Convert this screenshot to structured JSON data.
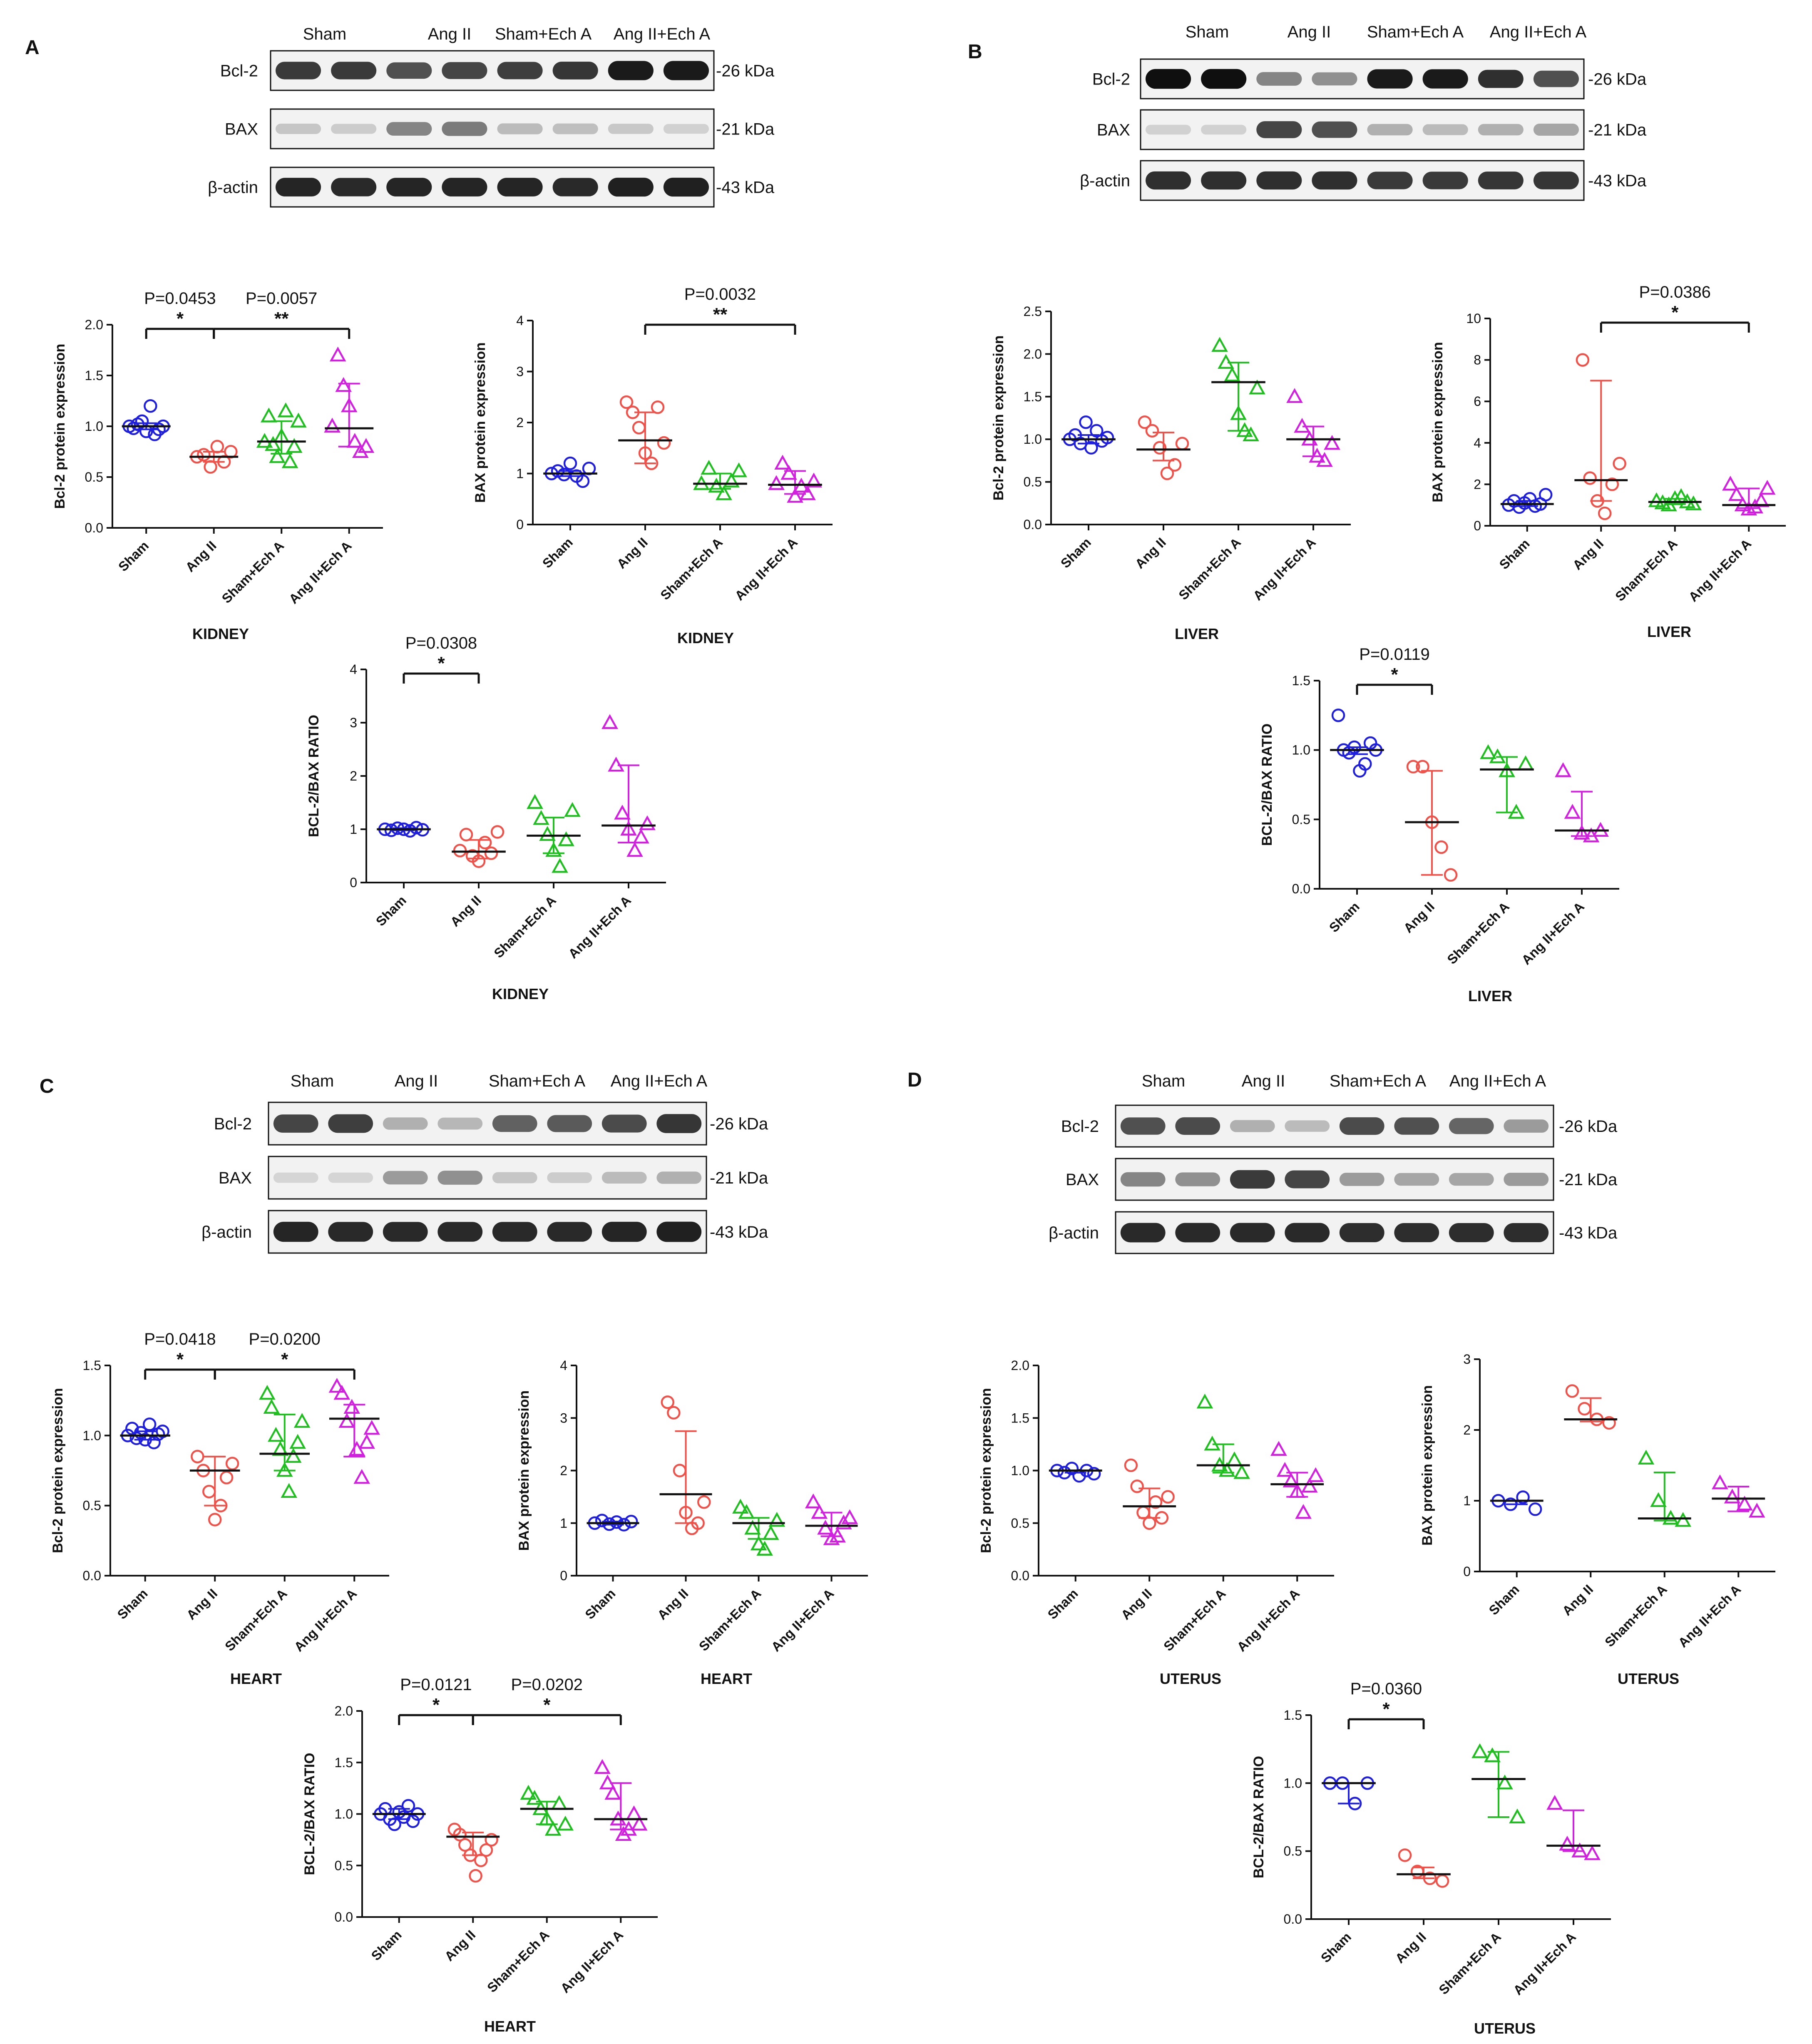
{
  "groups": [
    "Sham",
    "Ang II",
    "Sham+Ech A",
    "Ang II+Ech A"
  ],
  "group_colors": [
    "#1f1fe0",
    "#f0524a",
    "#1fbf1f",
    "#d21fe0"
  ],
  "group_markers": [
    "circle",
    "circle",
    "triangle",
    "triangle"
  ],
  "panels": [
    {
      "letter": "A",
      "blot": {
        "header": [
          "Sham",
          "Ang II",
          "Sham+Ech A",
          "Ang II+Ech A"
        ],
        "rows": [
          {
            "label": "Bcl-2",
            "size": "-26 kDa",
            "intensity": [
              0.8,
              0.8,
              0.7,
              0.75,
              0.78,
              0.82,
              0.95,
              0.95
            ]
          },
          {
            "label": "BAX",
            "size": "-21 kDa",
            "intensity": [
              0.15,
              0.12,
              0.45,
              0.5,
              0.2,
              0.18,
              0.14,
              0.1
            ]
          },
          {
            "label": "β-actin",
            "size": "-43 kDa",
            "intensity": [
              0.9,
              0.88,
              0.9,
              0.9,
              0.9,
              0.88,
              0.92,
              0.92
            ]
          }
        ]
      }
    },
    {
      "letter": "B",
      "blot": {
        "header": [
          "Sham",
          "Ang II",
          "Sham+Ech A",
          "Ang II+Ech A"
        ],
        "rows": [
          {
            "label": "Bcl-2",
            "size": "-26 kDa",
            "intensity": [
              1.0,
              1.0,
              0.45,
              0.4,
              0.95,
              0.95,
              0.85,
              0.7
            ]
          },
          {
            "label": "BAX",
            "size": "-21 kDa",
            "intensity": [
              0.1,
              0.1,
              0.75,
              0.7,
              0.25,
              0.2,
              0.25,
              0.3
            ]
          },
          {
            "label": "β-actin",
            "size": "-43 kDa",
            "intensity": [
              0.85,
              0.85,
              0.85,
              0.85,
              0.8,
              0.8,
              0.82,
              0.82
            ]
          }
        ]
      }
    },
    {
      "letter": "C",
      "blot": {
        "header": [
          "Sham",
          "Ang II",
          "Sham+Ech A",
          "Ang II+Ech A"
        ],
        "rows": [
          {
            "label": "Bcl-2",
            "size": "-26 kDa",
            "intensity": [
              0.75,
              0.78,
              0.25,
              0.22,
              0.62,
              0.65,
              0.72,
              0.82
            ]
          },
          {
            "label": "BAX",
            "size": "-21 kDa",
            "intensity": [
              0.08,
              0.08,
              0.35,
              0.4,
              0.15,
              0.12,
              0.2,
              0.25
            ]
          },
          {
            "label": "β-actin",
            "size": "-43 kDa",
            "intensity": [
              0.9,
              0.88,
              0.88,
              0.88,
              0.88,
              0.88,
              0.9,
              0.92
            ]
          }
        ]
      }
    },
    {
      "letter": "D",
      "blot": {
        "header": [
          "Sham",
          "Ang II",
          "Sham+Ech A",
          "Ang II+Ech A"
        ],
        "rows": [
          {
            "label": "Bcl-2",
            "size": "-26 kDa",
            "intensity": [
              0.7,
              0.72,
              0.25,
              0.2,
              0.72,
              0.7,
              0.6,
              0.35
            ]
          },
          {
            "label": "BAX",
            "size": "-21 kDa",
            "intensity": [
              0.45,
              0.4,
              0.8,
              0.75,
              0.35,
              0.3,
              0.3,
              0.35
            ]
          },
          {
            "label": "β-actin",
            "size": "-43 kDa",
            "intensity": [
              0.88,
              0.88,
              0.88,
              0.88,
              0.86,
              0.86,
              0.86,
              0.86
            ]
          }
        ]
      }
    }
  ],
  "chart_data": [
    {
      "id": "A1",
      "type": "scatter",
      "tissue": "KIDNEY",
      "ylabel": "Bcl-2 protein expression",
      "ylim": [
        0,
        2.0
      ],
      "yticks": [
        0.0,
        0.5,
        1.0,
        1.5,
        2.0
      ],
      "tick_decimals": 1,
      "points": [
        [
          1.0,
          0.98,
          1.02,
          1.05,
          0.95,
          1.2,
          0.92,
          0.97,
          1.0
        ],
        [
          0.7,
          0.72,
          0.6,
          0.8,
          0.65,
          0.75
        ],
        [
          0.85,
          1.1,
          0.82,
          0.7,
          0.9,
          1.15,
          0.65,
          0.8,
          1.05
        ],
        [
          1.0,
          1.7,
          1.4,
          1.2,
          0.85,
          0.75,
          0.8
        ]
      ],
      "median": [
        1.0,
        0.7,
        0.85,
        0.98
      ],
      "error_low": [
        0.97,
        0.65,
        0.73,
        0.8
      ],
      "error_high": [
        1.03,
        0.75,
        1.05,
        1.42
      ],
      "comparisons": [
        {
          "from": 0,
          "to": 1,
          "p": "P=0.0453",
          "stars": "*"
        },
        {
          "from": 1,
          "to": 3,
          "p": "P=0.0057",
          "stars": "**"
        }
      ]
    },
    {
      "id": "A2",
      "type": "scatter",
      "tissue": "KIDNEY",
      "ylabel": "BAX protein expression",
      "ylim": [
        0,
        4
      ],
      "yticks": [
        0,
        1,
        2,
        3,
        4
      ],
      "tick_decimals": 0,
      "points": [
        [
          1.0,
          1.05,
          0.98,
          1.2,
          0.95,
          0.85,
          1.1
        ],
        [
          2.4,
          2.2,
          1.9,
          1.4,
          1.2,
          2.3,
          1.6
        ],
        [
          0.8,
          1.1,
          0.75,
          0.6,
          0.85,
          1.05
        ],
        [
          0.8,
          1.2,
          1.0,
          0.55,
          0.75,
          0.6,
          0.85
        ]
      ],
      "median": [
        1.0,
        1.65,
        0.8,
        0.78
      ],
      "error_low": [
        0.95,
        1.2,
        0.7,
        0.6
      ],
      "error_high": [
        1.05,
        2.2,
        1.0,
        1.05
      ],
      "comparisons": [
        {
          "from": 1,
          "to": 3,
          "p": "P=0.0032",
          "stars": "**"
        }
      ]
    },
    {
      "id": "A3",
      "type": "scatter",
      "tissue": "KIDNEY",
      "ylabel": "BCL-2/BAX RATIO",
      "ylim": [
        0,
        4
      ],
      "yticks": [
        0,
        1,
        2,
        3,
        4
      ],
      "tick_decimals": 0,
      "points": [
        [
          1.0,
          0.98,
          1.02,
          1.0,
          0.97,
          1.03,
          0.99
        ],
        [
          0.6,
          0.9,
          0.5,
          0.4,
          0.75,
          0.55,
          0.95
        ],
        [
          1.5,
          1.2,
          0.9,
          0.6,
          0.3,
          0.8,
          1.35
        ],
        [
          3.0,
          2.2,
          1.3,
          1.0,
          0.6,
          0.85,
          1.1
        ]
      ],
      "median": [
        1.0,
        0.58,
        0.88,
        1.07
      ],
      "error_low": [
        0.98,
        0.45,
        0.55,
        0.75
      ],
      "error_high": [
        1.02,
        0.8,
        1.22,
        2.2
      ],
      "comparisons": [
        {
          "from": 0,
          "to": 1,
          "p": "P=0.0308",
          "stars": "*"
        }
      ]
    },
    {
      "id": "B1",
      "type": "scatter",
      "tissue": "LIVER",
      "ylabel": "Bcl-2 protein expression",
      "ylim": [
        0,
        2.5
      ],
      "yticks": [
        0.0,
        0.5,
        1.0,
        1.5,
        2.0,
        2.5
      ],
      "tick_decimals": 1,
      "points": [
        [
          1.0,
          1.05,
          0.95,
          1.2,
          0.9,
          1.1,
          0.98,
          1.02
        ],
        [
          1.2,
          1.1,
          0.9,
          0.6,
          0.7,
          0.95
        ],
        [
          2.1,
          1.9,
          1.75,
          1.3,
          1.1,
          1.05,
          1.6
        ],
        [
          1.5,
          1.15,
          1.0,
          0.8,
          0.75,
          0.95
        ]
      ],
      "median": [
        1.0,
        0.88,
        1.67,
        1.0
      ],
      "error_low": [
        0.95,
        0.75,
        1.1,
        0.8
      ],
      "error_high": [
        1.05,
        1.08,
        1.9,
        1.15
      ],
      "comparisons": []
    },
    {
      "id": "B2",
      "type": "scatter",
      "tissue": "LIVER",
      "ylabel": "BAX protein expression",
      "ylim": [
        0,
        10
      ],
      "yticks": [
        0,
        2,
        4,
        6,
        8,
        10
      ],
      "tick_decimals": 0,
      "points": [
        [
          1.0,
          1.2,
          0.9,
          1.1,
          1.3,
          0.95,
          1.05,
          1.5
        ],
        [
          8.0,
          2.3,
          1.2,
          0.6,
          2.0,
          3.0
        ],
        [
          1.2,
          1.1,
          1.0,
          1.3,
          1.4,
          1.15,
          1.05
        ],
        [
          2.0,
          1.5,
          1.0,
          0.8,
          0.9,
          1.2,
          1.8
        ]
      ],
      "median": [
        1.05,
        2.2,
        1.15,
        1.0
      ],
      "error_low": [
        0.95,
        1.2,
        1.05,
        0.85
      ],
      "error_high": [
        1.2,
        7.0,
        1.3,
        1.8
      ],
      "comparisons": [
        {
          "from": 1,
          "to": 3,
          "p": "P=0.0386",
          "stars": "*"
        }
      ]
    },
    {
      "id": "B3",
      "type": "scatter",
      "tissue": "LIVER",
      "ylabel": "BCL-2/BAX RATIO",
      "ylim": [
        0,
        1.5
      ],
      "yticks": [
        0.0,
        0.5,
        1.0,
        1.5
      ],
      "tick_decimals": 1,
      "points": [
        [
          1.25,
          1.0,
          0.98,
          1.02,
          0.85,
          0.9,
          1.05,
          1.0
        ],
        [
          0.88,
          0.88,
          0.48,
          0.3,
          0.1
        ],
        [
          0.98,
          0.95,
          0.85,
          0.55,
          0.9
        ],
        [
          0.85,
          0.55,
          0.4,
          0.38,
          0.42
        ]
      ],
      "median": [
        1.0,
        0.48,
        0.86,
        0.42
      ],
      "error_low": [
        0.97,
        0.1,
        0.55,
        0.38
      ],
      "error_high": [
        1.02,
        0.85,
        0.95,
        0.7
      ],
      "comparisons": [
        {
          "from": 0,
          "to": 1,
          "p": "P=0.0119",
          "stars": "*"
        }
      ]
    },
    {
      "id": "C1",
      "type": "scatter",
      "tissue": "HEART",
      "ylabel": "Bcl-2 protein expression",
      "ylim": [
        0,
        1.5
      ],
      "yticks": [
        0.0,
        0.5,
        1.0,
        1.5
      ],
      "tick_decimals": 1,
      "points": [
        [
          1.0,
          1.05,
          0.98,
          1.02,
          0.97,
          1.08,
          0.95,
          1.01,
          1.03
        ],
        [
          0.85,
          0.75,
          0.6,
          0.4,
          0.5,
          0.7,
          0.8
        ],
        [
          1.3,
          1.2,
          1.0,
          0.9,
          0.75,
          0.6,
          0.85,
          0.95,
          1.1
        ],
        [
          1.35,
          1.3,
          1.1,
          1.2,
          0.9,
          0.7,
          0.95,
          1.05
        ]
      ],
      "median": [
        1.0,
        0.75,
        0.87,
        1.12
      ],
      "error_low": [
        0.97,
        0.5,
        0.75,
        0.85
      ],
      "error_high": [
        1.03,
        0.85,
        1.15,
        1.22
      ],
      "comparisons": [
        {
          "from": 0,
          "to": 1,
          "p": "P=0.0418",
          "stars": "*"
        },
        {
          "from": 1,
          "to": 3,
          "p": "P=0.0200",
          "stars": "*"
        }
      ]
    },
    {
      "id": "C2",
      "type": "scatter",
      "tissue": "HEART",
      "ylabel": "BAX protein expression",
      "ylim": [
        0,
        4
      ],
      "yticks": [
        0,
        1,
        2,
        3,
        4
      ],
      "tick_decimals": 0,
      "points": [
        [
          1.0,
          1.05,
          0.98,
          1.02,
          0.97,
          1.03
        ],
        [
          3.3,
          3.1,
          2.0,
          1.2,
          0.9,
          1.0,
          1.4
        ],
        [
          1.3,
          1.2,
          0.9,
          0.6,
          0.5,
          0.8,
          1.05
        ],
        [
          1.4,
          1.2,
          0.9,
          0.7,
          0.75,
          1.0,
          1.1
        ]
      ],
      "median": [
        1.0,
        1.55,
        1.0,
        0.95
      ],
      "error_low": [
        0.97,
        1.0,
        0.7,
        0.75
      ],
      "error_high": [
        1.03,
        2.75,
        1.1,
        1.2
      ],
      "comparisons": []
    },
    {
      "id": "C3",
      "type": "scatter",
      "tissue": "HEART",
      "ylabel": "BCL-2/BAX RATIO",
      "ylim": [
        0,
        2.0
      ],
      "yticks": [
        0.0,
        0.5,
        1.0,
        1.5,
        2.0
      ],
      "tick_decimals": 1,
      "points": [
        [
          1.0,
          1.05,
          0.95,
          0.9,
          1.02,
          0.97,
          1.08,
          0.93,
          1.0
        ],
        [
          0.85,
          0.8,
          0.7,
          0.6,
          0.4,
          0.55,
          0.65,
          0.75
        ],
        [
          1.2,
          1.15,
          1.05,
          0.95,
          0.85,
          1.1,
          0.9
        ],
        [
          1.45,
          1.3,
          1.2,
          0.95,
          0.8,
          0.85,
          1.0,
          0.9
        ]
      ],
      "median": [
        1.0,
        0.78,
        1.05,
        0.95
      ],
      "error_low": [
        0.95,
        0.6,
        0.9,
        0.85
      ],
      "error_high": [
        1.05,
        0.82,
        1.12,
        1.3
      ],
      "comparisons": [
        {
          "from": 0,
          "to": 1,
          "p": "P=0.0121",
          "stars": "*"
        },
        {
          "from": 1,
          "to": 3,
          "p": "P=0.0202",
          "stars": "*"
        }
      ]
    },
    {
      "id": "D1",
      "type": "scatter",
      "tissue": "UTERUS",
      "ylabel": "Bcl-2 protein expression",
      "ylim": [
        0,
        2.0
      ],
      "yticks": [
        0.0,
        0.5,
        1.0,
        1.5,
        2.0
      ],
      "tick_decimals": 1,
      "points": [
        [
          1.0,
          0.98,
          1.02,
          0.95,
          1.0,
          0.97
        ],
        [
          1.05,
          0.85,
          0.6,
          0.5,
          0.7,
          0.55,
          0.75
        ],
        [
          1.65,
          1.25,
          1.05,
          1.0,
          1.1,
          0.98
        ],
        [
          1.2,
          1.0,
          0.9,
          0.8,
          0.6,
          0.85,
          0.95
        ]
      ],
      "median": [
        1.0,
        0.66,
        1.05,
        0.87
      ],
      "error_low": [
        0.98,
        0.55,
        0.98,
        0.75
      ],
      "error_high": [
        1.0,
        0.83,
        1.25,
        0.98
      ],
      "comparisons": []
    },
    {
      "id": "D2",
      "type": "scatter",
      "tissue": "UTERUS",
      "ylabel": "BAX protein expression",
      "ylim": [
        0,
        3
      ],
      "yticks": [
        0,
        1,
        2,
        3
      ],
      "tick_decimals": 0,
      "points": [
        [
          1.0,
          0.95,
          1.05,
          0.88
        ],
        [
          2.55,
          2.3,
          2.15,
          2.1
        ],
        [
          1.6,
          1.0,
          0.75,
          0.72
        ],
        [
          1.25,
          1.05,
          0.95,
          0.85
        ]
      ],
      "median": [
        1.0,
        2.15,
        0.75,
        1.03
      ],
      "error_low": [
        0.95,
        2.12,
        0.72,
        0.85
      ],
      "error_high": [
        1.0,
        2.45,
        1.4,
        1.2
      ],
      "comparisons": []
    },
    {
      "id": "D3",
      "type": "scatter",
      "tissue": "UTERUS",
      "ylabel": "BCL-2/BAX RATIO",
      "ylim": [
        0,
        1.5
      ],
      "yticks": [
        0.0,
        0.5,
        1.0,
        1.5
      ],
      "tick_decimals": 1,
      "points": [
        [
          1.0,
          1.0,
          0.85,
          1.0
        ],
        [
          0.47,
          0.35,
          0.3,
          0.28
        ],
        [
          1.23,
          1.2,
          1.0,
          0.75
        ],
        [
          0.85,
          0.55,
          0.5,
          0.48
        ]
      ],
      "median": [
        1.0,
        0.33,
        1.03,
        0.54
      ],
      "error_low": [
        0.85,
        0.3,
        0.75,
        0.5
      ],
      "error_high": [
        1.0,
        0.38,
        1.23,
        0.8
      ],
      "comparisons": [
        {
          "from": 0,
          "to": 1,
          "p": "P=0.0360",
          "stars": "*"
        }
      ]
    }
  ]
}
